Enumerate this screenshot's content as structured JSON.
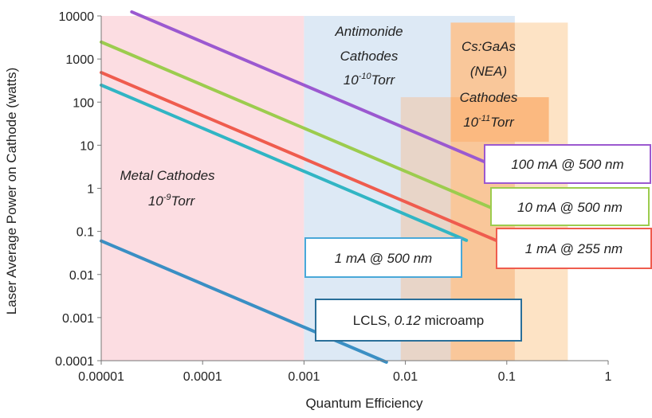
{
  "chart_data": {
    "type": "line",
    "x_scale": "log",
    "y_scale": "log",
    "xlim": [
      1e-05,
      1
    ],
    "ylim": [
      0.0001,
      10000
    ],
    "xlabel": "Quantum Efficiency",
    "ylabel": "Laser Average Power on Cathode (watts)",
    "x_ticks": [
      {
        "value": 1e-05,
        "label": "0.00001"
      },
      {
        "value": 0.0001,
        "label": "0.0001"
      },
      {
        "value": 0.001,
        "label": "0.001"
      },
      {
        "value": 0.01,
        "label": "0.01"
      },
      {
        "value": 0.1,
        "label": "0.1"
      },
      {
        "value": 1,
        "label": "1"
      }
    ],
    "y_ticks": [
      {
        "value": 10000,
        "label": "10000"
      },
      {
        "value": 1000,
        "label": "1000"
      },
      {
        "value": 100,
        "label": "100"
      },
      {
        "value": 10,
        "label": "10"
      },
      {
        "value": 1,
        "label": "1"
      },
      {
        "value": 0.1,
        "label": "0.1"
      },
      {
        "value": 0.01,
        "label": "0.01"
      },
      {
        "value": 0.001,
        "label": "0.001"
      },
      {
        "value": 0.0001,
        "label": "0.0001"
      }
    ],
    "grid": false,
    "regions": [
      {
        "x_range": [
          1e-05,
          0.001
        ],
        "y_range": [
          0.0001,
          10000
        ],
        "color": "#fcdde2"
      },
      {
        "x_range": [
          0.001,
          0.12
        ],
        "y_range": [
          0.0001,
          10000
        ],
        "color": "#dde9f5"
      },
      {
        "x_range": [
          0.009,
          0.12
        ],
        "y_range": [
          0.0001,
          130
        ],
        "color": "#e8d5c8"
      },
      {
        "x_range": [
          0.12,
          0.4
        ],
        "y_range": [
          0.0001,
          7000
        ],
        "color": "#fde3c5"
      },
      {
        "x_range": [
          0.028,
          0.12
        ],
        "y_range": [
          0.0001,
          7000
        ],
        "color": "#f9c79a"
      },
      {
        "x_range": [
          0.028,
          0.26
        ],
        "y_range": [
          12,
          130
        ],
        "color": "#fbb980"
      }
    ],
    "region_labels": [
      {
        "lines": [
          "Metal Cathodes",
          "10^-9 Torr"
        ],
        "text1": "Metal Cathodes",
        "pre": "10",
        "sup": "-9",
        "post": "Torr"
      },
      {
        "lines": [
          "Antimonide",
          "Cathodes",
          "10^-10 Torr"
        ],
        "text1": "Antimonide",
        "text2": "Cathodes",
        "pre": "10",
        "sup": "-10",
        "post": "Torr"
      },
      {
        "lines": [
          "Cs:GaAs",
          "(NEA)",
          "Cathodes",
          "10^-11 Torr"
        ],
        "text1": "Cs:GaAs",
        "text2": "(NEA)",
        "text3": "Cathodes",
        "pre": "10",
        "sup": "-11",
        "post": "Torr"
      }
    ],
    "series": [
      {
        "name": "100 mA @ 500 nm",
        "color": "#9b59d0",
        "x": [
          2e-05,
          0.12
        ],
        "y": [
          12400,
          2.07
        ]
      },
      {
        "name": "10 mA @ 500 nm",
        "color": "#9ccc4e",
        "x": [
          1e-05,
          0.12
        ],
        "y": [
          2480,
          0.207
        ]
      },
      {
        "name": "1 mA @ 255 nm",
        "color": "#ef5c4e",
        "x": [
          1e-05,
          0.12
        ],
        "y": [
          486,
          0.0405
        ]
      },
      {
        "name": "1 mA @ 500 nm",
        "color": "#31b5c4",
        "x": [
          1e-05,
          0.04
        ],
        "y": [
          248,
          0.062
        ]
      },
      {
        "name": "LCLS, 0.12 microamp",
        "color": "#3a8fc4",
        "x": [
          1e-05,
          0.0065
        ],
        "y": [
          0.06,
          9.23e-05
        ]
      }
    ],
    "callouts": [
      {
        "text": "100 mA @ 500 nm",
        "border": "#9b59d0"
      },
      {
        "text": "10 mA @ 500 nm",
        "border": "#9ccc4e"
      },
      {
        "text": "1 mA @ 255 nm",
        "border": "#ef5c4e"
      },
      {
        "text": "1 mA @ 500 nm",
        "border": "#4aa8d8"
      },
      {
        "text_upright_1": "LCLS, ",
        "text_italic": "0.12",
        "text_upright_2": " microamp",
        "border": "#2a6f99"
      }
    ]
  }
}
